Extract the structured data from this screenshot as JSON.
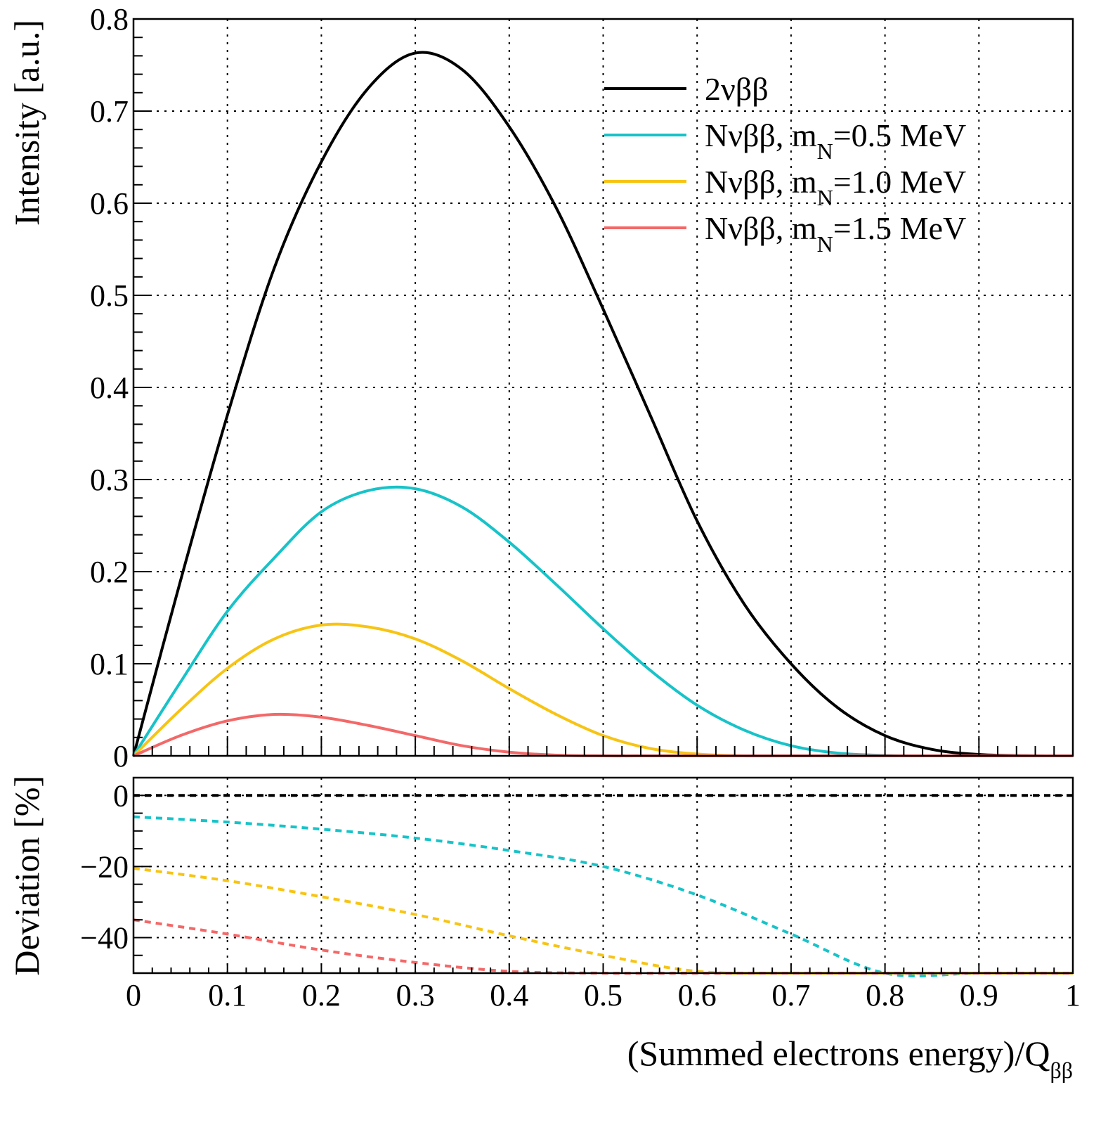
{
  "chart_data": [
    {
      "type": "line",
      "panel": "top",
      "xlabel": "(Summed electrons energy)/Q",
      "xlabel_subscript": "ββ",
      "ylabel": "Intensity [a.u.]",
      "xlim": [
        0,
        1
      ],
      "ylim": [
        0,
        0.8
      ],
      "grid": true,
      "legend_placement": "top-right",
      "x_ticks": [
        "0",
        "0.1",
        "0.2",
        "0.3",
        "0.4",
        "0.5",
        "0.6",
        "0.7",
        "0.8",
        "0.9",
        "1"
      ],
      "y_ticks": [
        0,
        0.1,
        0.2,
        0.3,
        0.4,
        0.5,
        0.6,
        0.7,
        0.8
      ],
      "y_tick_labels": [
        "0",
        "0.1",
        "0.2",
        "0.3",
        "0.4",
        "0.5",
        "0.6",
        "0.7",
        "0.8"
      ],
      "x": [
        0,
        0.05,
        0.1,
        0.15,
        0.2,
        0.25,
        0.3,
        0.35,
        0.4,
        0.45,
        0.5,
        0.55,
        0.6,
        0.65,
        0.7,
        0.75,
        0.8,
        0.85,
        0.9,
        0.95,
        1.0
      ],
      "series": [
        {
          "name": "2νββ",
          "legend_main": "2νββ",
          "legend_sub": "",
          "legend_tail": "",
          "color": "#000000",
          "values": [
            0,
            0.19,
            0.37,
            0.53,
            0.645,
            0.725,
            0.763,
            0.745,
            0.683,
            0.595,
            0.485,
            0.37,
            0.255,
            0.165,
            0.1,
            0.052,
            0.022,
            0.007,
            0.0015,
            0.0002,
            0
          ]
        },
        {
          "name": "Nνββ, mN=0.5 MeV",
          "legend_main": "Nνββ, m",
          "legend_sub": "N",
          "legend_tail": "=0.5 MeV",
          "color": "#17c3c8",
          "values": [
            0,
            0.08,
            0.157,
            0.215,
            0.265,
            0.288,
            0.29,
            0.27,
            0.232,
            0.186,
            0.138,
            0.093,
            0.055,
            0.028,
            0.011,
            0.003,
            0.0005,
            0,
            0,
            0,
            0
          ]
        },
        {
          "name": "Nνββ, mN=1.0 MeV",
          "legend_main": "Nνββ, m",
          "legend_sub": "N",
          "legend_tail": "=1.0 MeV",
          "color": "#f7c414",
          "values": [
            0,
            0.05,
            0.095,
            0.127,
            0.142,
            0.14,
            0.127,
            0.103,
            0.073,
            0.045,
            0.022,
            0.008,
            0.002,
            0,
            0,
            0,
            0,
            0,
            0,
            0,
            0
          ]
        },
        {
          "name": "Nνββ, mN=1.5 MeV",
          "legend_main": "Nνββ, m",
          "legend_sub": "N",
          "legend_tail": "=1.5 MeV",
          "color": "#f36868",
          "values": [
            0,
            0.022,
            0.038,
            0.045,
            0.042,
            0.033,
            0.022,
            0.011,
            0.004,
            0.0008,
            0,
            0,
            0,
            0,
            0,
            0,
            0,
            0,
            0,
            0,
            0
          ]
        }
      ]
    },
    {
      "type": "line",
      "panel": "bottom",
      "ylabel": "Deviation [%]",
      "xlim": [
        0,
        1
      ],
      "ylim": [
        -50,
        5
      ],
      "grid": true,
      "line_style": "dashed",
      "y_ticks": [
        0,
        -20,
        -40
      ],
      "y_tick_labels": [
        "0",
        "−20",
        "−40"
      ],
      "x": [
        0,
        0.1,
        0.2,
        0.3,
        0.4,
        0.5,
        0.6,
        0.7,
        0.8,
        0.9,
        1.0
      ],
      "series": [
        {
          "color": "#000000",
          "values": [
            0,
            0,
            0,
            0,
            0,
            0,
            0,
            0,
            0,
            0,
            0
          ]
        },
        {
          "color": "#17c3c8",
          "values": [
            -6,
            -7.5,
            -9.5,
            -12,
            -15.5,
            -20,
            -28,
            -39,
            -50,
            -50,
            -50
          ]
        },
        {
          "color": "#f7c414",
          "values": [
            -20.5,
            -24,
            -28.5,
            -33.5,
            -39.5,
            -45,
            -49.5,
            -50,
            -50,
            -50,
            -50
          ]
        },
        {
          "color": "#f36868",
          "values": [
            -35,
            -39,
            -43.5,
            -47,
            -49.5,
            -50,
            -50,
            -50,
            -50,
            -50,
            -50
          ]
        }
      ]
    }
  ]
}
